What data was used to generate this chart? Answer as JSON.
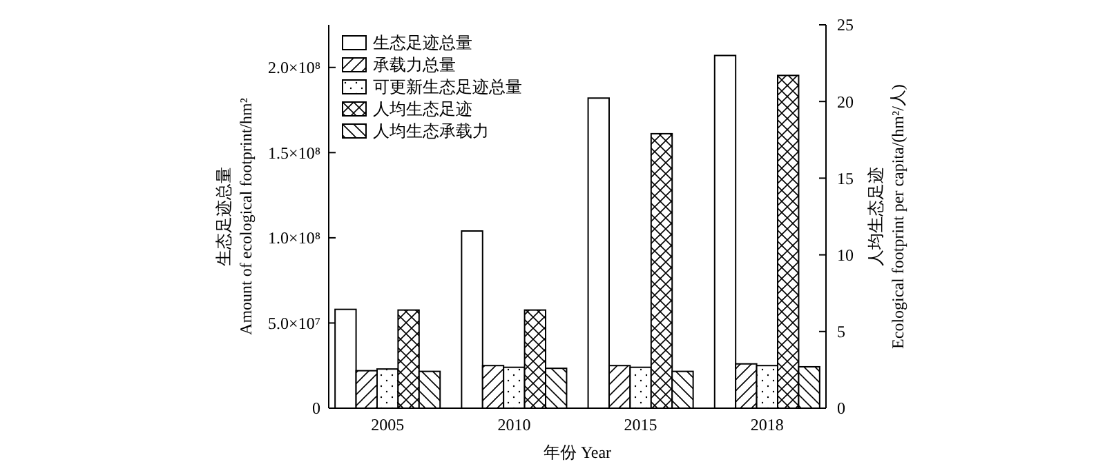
{
  "chart_data": {
    "type": "bar",
    "xlabel": "年份 Year",
    "ylabel": "生态足迹总量\nAmount of ecological footprint/hm²",
    "y2label": "人均生态足迹\nEcological footprint per capita/(hm²/人)",
    "categories": [
      "2005",
      "2010",
      "2015",
      "2018"
    ],
    "series": [
      {
        "name": "生态足迹总量",
        "color": "#000000",
        "values": [
          58000000,
          104000000,
          182000000,
          207000000
        ]
      },
      {
        "name": "承载力总量",
        "color": "#000000",
        "values": [
          22000000,
          25000000,
          25000000,
          26000000
        ]
      },
      {
        "name": "可更新生态足迹总量",
        "color": "#000000",
        "values": [
          23000000,
          24000000,
          24000000,
          25000000
        ]
      },
      {
        "name": "人均生态足迹",
        "color": "#000000",
        "axis": "y2",
        "values": [
          6.4,
          6.4,
          17.9,
          21.7
        ]
      },
      {
        "name": "人均生态承载力",
        "color": "#000000",
        "axis": "y2",
        "values": [
          2.4,
          2.6,
          2.4,
          2.7
        ]
      }
    ],
    "ylim": [
      0,
      225000000
    ],
    "yticks": [
      {
        "value": 0,
        "label": "0"
      },
      {
        "value": 50000000,
        "label": "5.0×10⁷"
      },
      {
        "value": 100000000,
        "label": "1.0×10⁸"
      },
      {
        "value": 150000000,
        "label": "1.5×10⁸"
      },
      {
        "value": 200000000,
        "label": "2.0×10⁸"
      }
    ],
    "y2lim": [
      0,
      25
    ],
    "y2ticks": [
      0,
      5,
      10,
      15,
      20,
      25
    ],
    "legend": "top left",
    "grid": false
  }
}
